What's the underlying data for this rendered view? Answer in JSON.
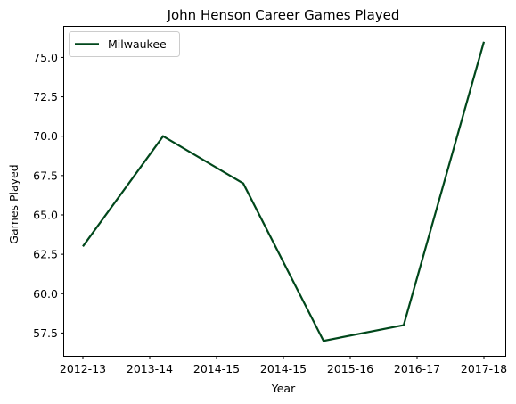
{
  "chart_data": {
    "type": "line",
    "title": "John Henson  Career Games Played",
    "xlabel": "Year",
    "ylabel": "Games Played",
    "x_tick_labels": [
      "2012-13",
      "2013-14",
      "2014-15",
      "2014-15",
      "2015-16",
      "2016-17",
      "2017-18"
    ],
    "y_ticks": [
      57.5,
      60.0,
      62.5,
      65.0,
      67.5,
      70.0,
      72.5,
      75.0
    ],
    "y_tick_labels": [
      "57.5",
      "60.0",
      "62.5",
      "65.0",
      "67.5",
      "70.0",
      "72.5",
      "75.0"
    ],
    "ylim": [
      56.05,
      76.95
    ],
    "grid": false,
    "legend_position": "upper-left",
    "series": [
      {
        "name": "Milwaukee",
        "color": "#00471B",
        "values": [
          63,
          70,
          67,
          57,
          58,
          76
        ]
      }
    ]
  }
}
